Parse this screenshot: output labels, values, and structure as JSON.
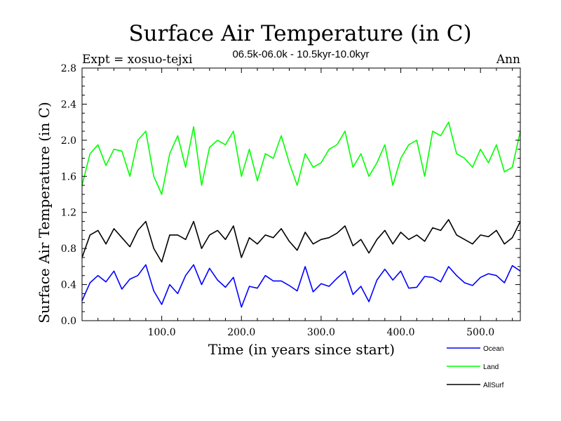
{
  "chart_data": {
    "type": "line",
    "title": "Surface Air Temperature (in C)",
    "subtitle": "06.5k-06.0k - 10.5kyr-10.0kyr",
    "experiment_label": "Expt = xosuo-tejxi",
    "season_label": "Ann",
    "xlabel": "Time (in years since start)",
    "ylabel": "Surface Air Temperature (in C)",
    "xlim": [
      0,
      550
    ],
    "ylim": [
      0.0,
      2.8
    ],
    "x_ticks": [
      100,
      200,
      300,
      400,
      500
    ],
    "x_tick_labels": [
      "100.0",
      "200.0",
      "300.0",
      "400.0",
      "500.0"
    ],
    "y_ticks": [
      0.0,
      0.4,
      0.8,
      1.2,
      1.6,
      2.0,
      2.4,
      2.8
    ],
    "y_tick_labels": [
      "0.0",
      "0.4",
      "0.8",
      "1.2",
      "1.6",
      "2.0",
      "2.4",
      "2.8"
    ],
    "legend_position": "bottom-right",
    "x_step": 10,
    "series": [
      {
        "name": "Ocean",
        "color": "#0000ff",
        "values": [
          0.22,
          0.42,
          0.5,
          0.43,
          0.55,
          0.35,
          0.46,
          0.5,
          0.62,
          0.33,
          0.18,
          0.4,
          0.3,
          0.5,
          0.62,
          0.4,
          0.58,
          0.45,
          0.37,
          0.48,
          0.15,
          0.38,
          0.36,
          0.5,
          0.44,
          0.44,
          0.39,
          0.33,
          0.6,
          0.32,
          0.41,
          0.38,
          0.47,
          0.55,
          0.29,
          0.38,
          0.21,
          0.45,
          0.57,
          0.45,
          0.55,
          0.36,
          0.37,
          0.49,
          0.48,
          0.43,
          0.6,
          0.5,
          0.42,
          0.39,
          0.48,
          0.52,
          0.5,
          0.42,
          0.61,
          0.55
        ]
      },
      {
        "name": "Land",
        "color": "#00ff00",
        "values": [
          1.5,
          1.85,
          1.95,
          1.72,
          1.9,
          1.88,
          1.6,
          2.0,
          2.1,
          1.6,
          1.4,
          1.85,
          2.05,
          1.7,
          2.15,
          1.5,
          1.92,
          2.0,
          1.95,
          2.1,
          1.6,
          1.9,
          1.55,
          1.85,
          1.8,
          2.05,
          1.75,
          1.5,
          1.85,
          1.7,
          1.75,
          1.9,
          1.95,
          2.1,
          1.7,
          1.85,
          1.6,
          1.75,
          1.95,
          1.5,
          1.8,
          1.95,
          2.0,
          1.6,
          2.1,
          2.05,
          2.2,
          1.85,
          1.8,
          1.7,
          1.9,
          1.75,
          1.95,
          1.65,
          1.7,
          2.1
        ]
      },
      {
        "name": "AllSurf",
        "color": "#000000",
        "values": [
          0.7,
          0.95,
          1.0,
          0.85,
          1.02,
          0.92,
          0.82,
          1.0,
          1.1,
          0.8,
          0.65,
          0.95,
          0.95,
          0.9,
          1.1,
          0.8,
          0.95,
          1.0,
          0.9,
          1.05,
          0.7,
          0.92,
          0.85,
          0.95,
          0.92,
          1.02,
          0.88,
          0.78,
          0.98,
          0.85,
          0.9,
          0.92,
          0.97,
          1.05,
          0.83,
          0.9,
          0.75,
          0.9,
          1.0,
          0.85,
          0.98,
          0.9,
          0.95,
          0.88,
          1.03,
          1.0,
          1.12,
          0.95,
          0.9,
          0.85,
          0.95,
          0.93,
          1.0,
          0.85,
          0.92,
          1.1
        ]
      }
    ]
  }
}
